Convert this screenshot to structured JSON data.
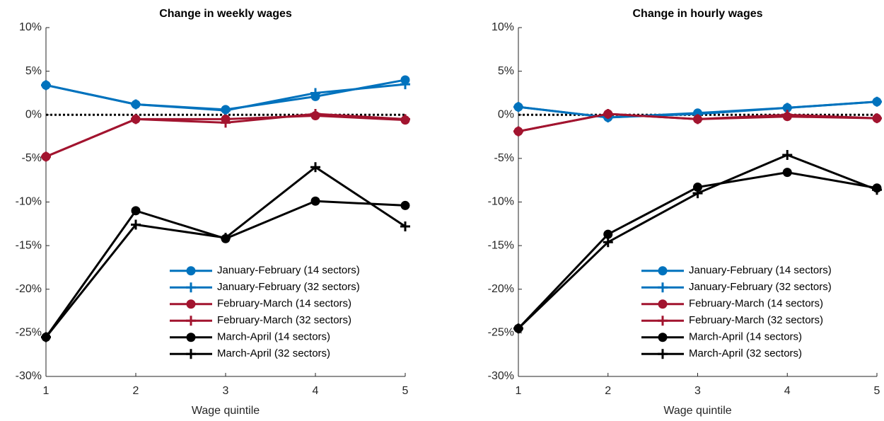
{
  "chart_data": [
    {
      "type": "line",
      "title": "Change in weekly wages",
      "xlabel": "Wage quintile",
      "x": [
        1,
        2,
        3,
        4,
        5
      ],
      "xlim": [
        1,
        5
      ],
      "xticks": [
        1,
        2,
        3,
        4,
        5
      ],
      "ylim": [
        -30,
        10
      ],
      "yticks": [
        {
          "value": -30,
          "label": "-30%"
        },
        {
          "value": -25,
          "label": "-25%"
        },
        {
          "value": -20,
          "label": "-20%"
        },
        {
          "value": -15,
          "label": "-15%"
        },
        {
          "value": -10,
          "label": "-10%"
        },
        {
          "value": -5,
          "label": "-5%"
        },
        {
          "value": 0,
          "label": "0%"
        },
        {
          "value": 5,
          "label": "5%"
        },
        {
          "value": 10,
          "label": "10%"
        }
      ],
      "reference_line": 0,
      "legend": "lower right",
      "series": [
        {
          "name": "January-February (14 sectors)",
          "color": "#0072bd",
          "marker": "o",
          "values": [
            3.4,
            1.2,
            0.6,
            2.1,
            4.0
          ]
        },
        {
          "name": "January-February (32 sectors)",
          "color": "#0072bd",
          "marker": "+",
          "values": [
            3.4,
            1.2,
            0.5,
            2.5,
            3.5
          ]
        },
        {
          "name": "February-March (14 sectors)",
          "color": "#a2142f",
          "marker": "o",
          "values": [
            -4.8,
            -0.5,
            -0.5,
            -0.1,
            -0.6
          ]
        },
        {
          "name": "February-March (32 sectors)",
          "color": "#a2142f",
          "marker": "+",
          "values": [
            -4.8,
            -0.5,
            -0.9,
            0.1,
            -0.5
          ]
        },
        {
          "name": "March-April (14 sectors)",
          "color": "#000000",
          "marker": "o",
          "values": [
            -25.5,
            -11.0,
            -14.2,
            -9.9,
            -10.4
          ]
        },
        {
          "name": "March-April (32 sectors)",
          "color": "#000000",
          "marker": "+",
          "values": [
            -25.5,
            -12.6,
            -14.1,
            -6.0,
            -12.8
          ]
        }
      ]
    },
    {
      "type": "line",
      "title": "Change in hourly wages",
      "xlabel": "Wage quintile",
      "x": [
        1,
        2,
        3,
        4,
        5
      ],
      "xlim": [
        1,
        5
      ],
      "xticks": [
        1,
        2,
        3,
        4,
        5
      ],
      "ylim": [
        -30,
        10
      ],
      "yticks": [
        {
          "value": -30,
          "label": "-30%"
        },
        {
          "value": -25,
          "label": "-25%"
        },
        {
          "value": -20,
          "label": "-20%"
        },
        {
          "value": -15,
          "label": "-15%"
        },
        {
          "value": -10,
          "label": "-10%"
        },
        {
          "value": -5,
          "label": "-5%"
        },
        {
          "value": 0,
          "label": "0%"
        },
        {
          "value": 5,
          "label": "5%"
        },
        {
          "value": 10,
          "label": "10%"
        }
      ],
      "reference_line": 0,
      "legend": "lower right",
      "series": [
        {
          "name": "January-February (14 sectors)",
          "color": "#0072bd",
          "marker": "o",
          "values": [
            0.9,
            -0.3,
            0.2,
            0.8,
            1.5
          ]
        },
        {
          "name": "January-February (32 sectors)",
          "color": "#0072bd",
          "marker": "+",
          "values": [
            0.9,
            -0.3,
            0.1,
            0.8,
            1.5
          ]
        },
        {
          "name": "February-March (14 sectors)",
          "color": "#a2142f",
          "marker": "o",
          "values": [
            -1.9,
            0.1,
            -0.5,
            -0.2,
            -0.4
          ]
        },
        {
          "name": "February-March (32 sectors)",
          "color": "#a2142f",
          "marker": "+",
          "values": [
            -1.9,
            0.1,
            -0.5,
            0.0,
            -0.4
          ]
        },
        {
          "name": "March-April (14 sectors)",
          "color": "#000000",
          "marker": "o",
          "values": [
            -24.5,
            -13.7,
            -8.3,
            -6.6,
            -8.4
          ]
        },
        {
          "name": "March-April (32 sectors)",
          "color": "#000000",
          "marker": "+",
          "values": [
            -24.5,
            -14.6,
            -9.0,
            -4.6,
            -8.6
          ]
        }
      ]
    }
  ]
}
